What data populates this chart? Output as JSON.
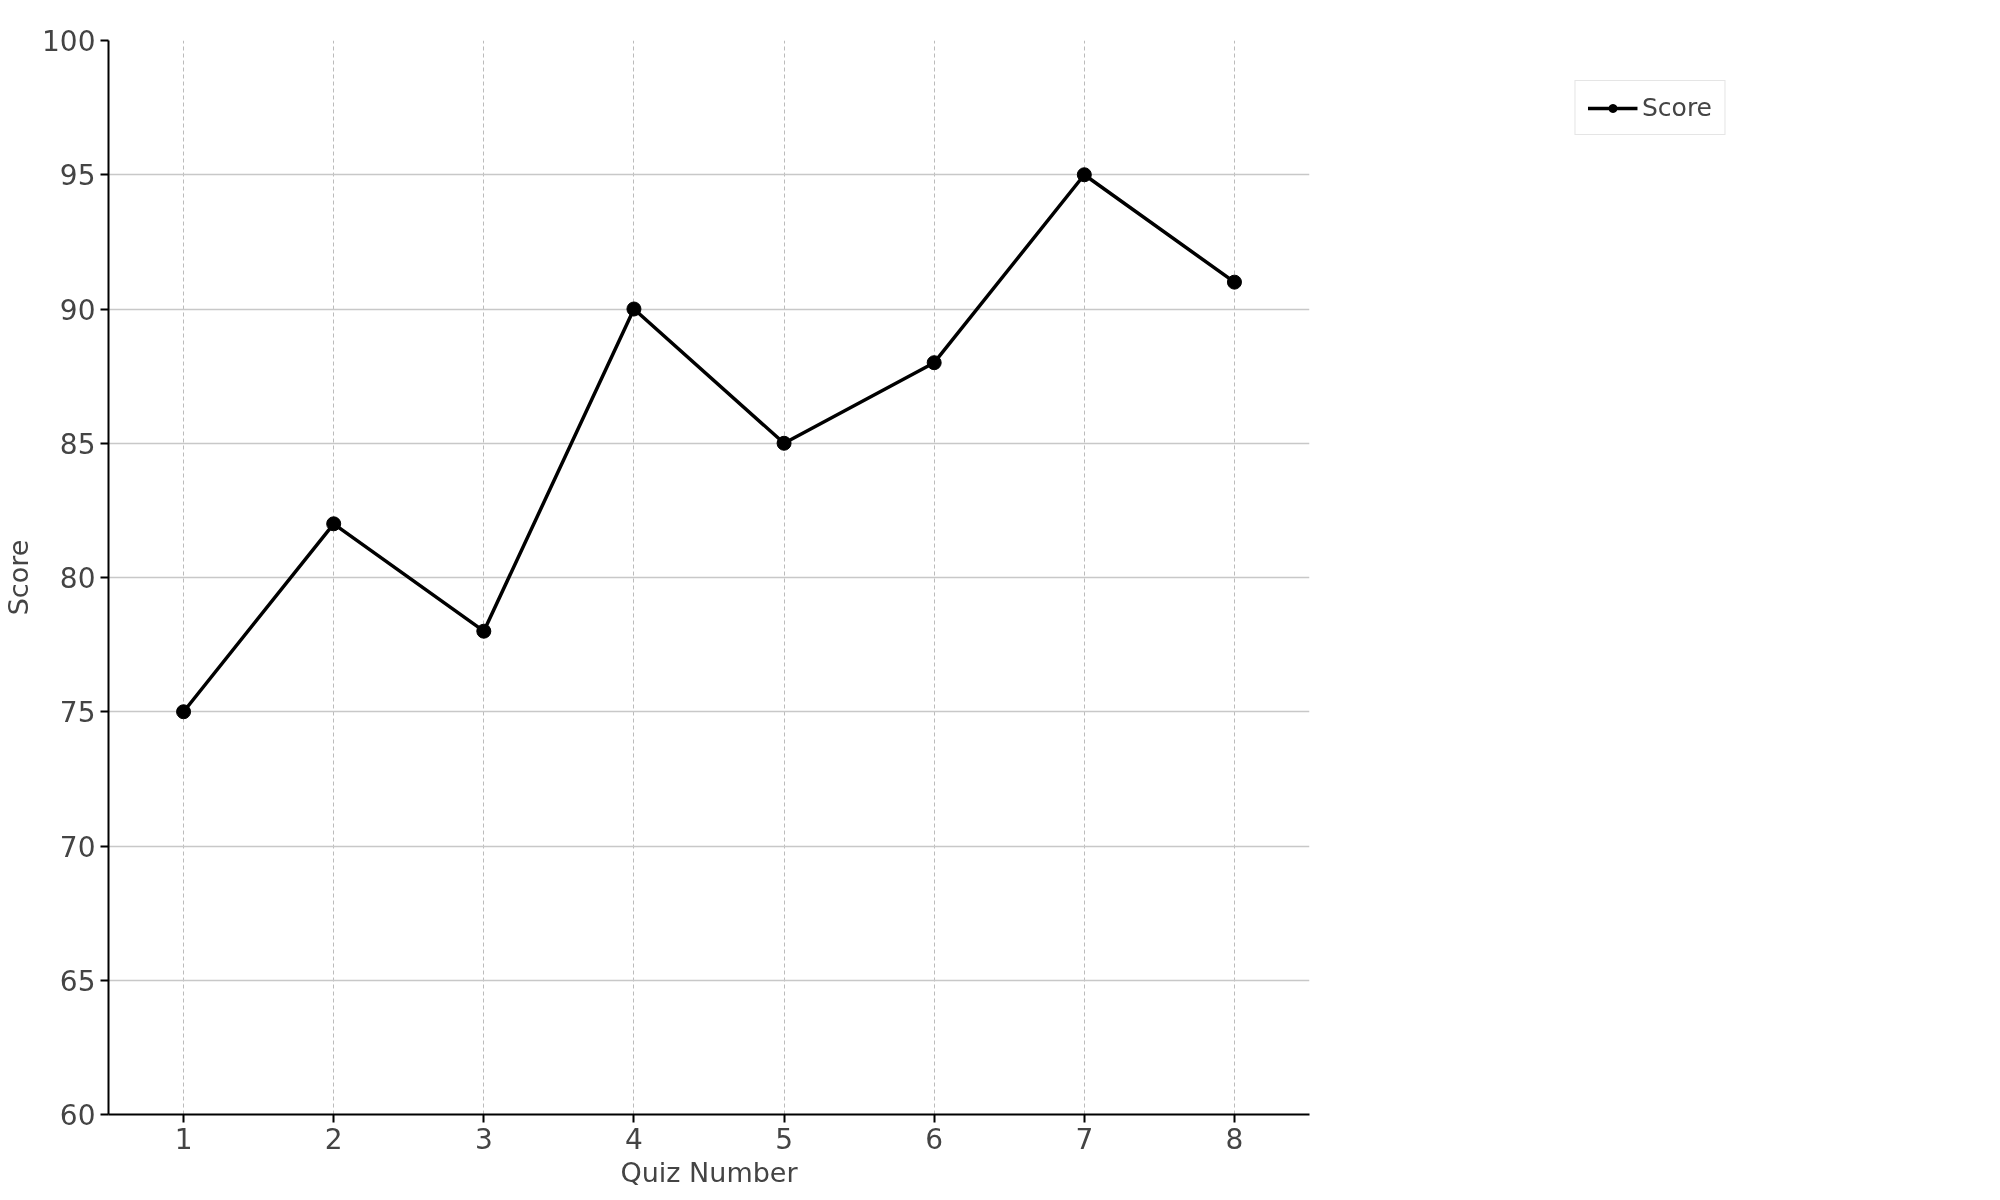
{
  "chart_data": {
    "type": "line",
    "xlabel": "Quiz Number",
    "ylabel": "Score",
    "x": [
      1,
      2,
      3,
      4,
      5,
      6,
      7,
      8
    ],
    "series": [
      {
        "name": "Score",
        "color": "#000000",
        "values": [
          75,
          82,
          78,
          90,
          85,
          88,
          95,
          91
        ]
      }
    ],
    "xlim": [
      0.5,
      8.5
    ],
    "xticks": [
      1,
      2,
      3,
      4,
      5,
      6,
      7,
      8
    ],
    "ylim": [
      60,
      100
    ],
    "yticks": [
      60,
      65,
      70,
      75,
      80,
      85,
      90,
      95,
      100
    ],
    "grid": true,
    "legend": "top right",
    "marker": "circle",
    "line_style": "solid"
  }
}
